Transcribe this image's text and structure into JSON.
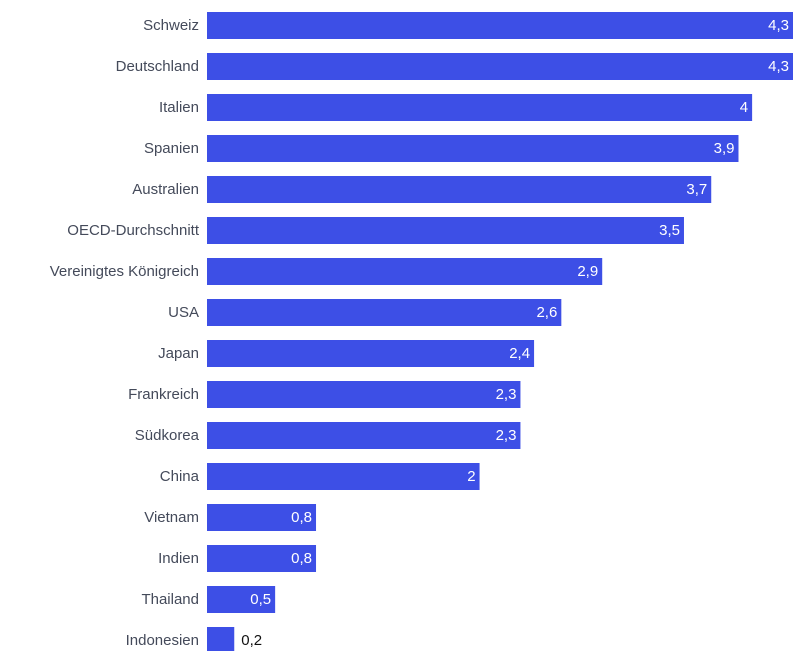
{
  "chart_data": {
    "type": "bar",
    "orientation": "horizontal",
    "title": "",
    "xlabel": "",
    "ylabel": "",
    "xlim": [
      0,
      4.3
    ],
    "grid": false,
    "legend": "none",
    "bar_color": "#3d4fe6",
    "categories": [
      "Schweiz",
      "Deutschland",
      "Italien",
      "Spanien",
      "Australien",
      "OECD-Durchschnitt",
      "Vereinigtes Königreich",
      "USA",
      "Japan",
      "Frankreich",
      "Südkorea",
      "China",
      "Vietnam",
      "Indien",
      "Thailand",
      "Indonesien"
    ],
    "values": [
      4.3,
      4.3,
      4.0,
      3.9,
      3.7,
      3.5,
      2.9,
      2.6,
      2.4,
      2.3,
      2.3,
      2.0,
      0.8,
      0.8,
      0.5,
      0.2
    ],
    "value_labels": [
      "4,3",
      "4,3",
      "4",
      "3,9",
      "3,7",
      "3,5",
      "2,9",
      "2,6",
      "2,4",
      "2,3",
      "2,3",
      "2",
      "0,8",
      "0,8",
      "0,5",
      "0,2"
    ]
  }
}
